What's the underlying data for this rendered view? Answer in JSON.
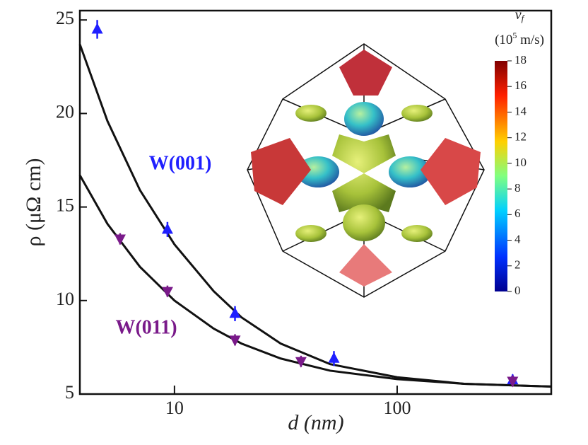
{
  "chart_data": {
    "type": "scatter",
    "xlabel": "d (nm)",
    "ylabel": "ρ (μΩ cm)",
    "xscale": "log",
    "xlim": [
      3.76,
      492
    ],
    "xticks": [
      10,
      100
    ],
    "ylim": [
      5,
      25.5
    ],
    "yticks": [
      5,
      10,
      15,
      20,
      25
    ],
    "series": [
      {
        "name": "W(001)",
        "color": "#1f1fff",
        "marker": "up",
        "x": [
          4.5,
          9.3,
          18.7,
          52,
          330
        ],
        "values": [
          24.5,
          13.8,
          9.3,
          6.9,
          5.75
        ],
        "errors": [
          0.5,
          0.4,
          0.4,
          0.4,
          0.3
        ]
      },
      {
        "name": "W(011)",
        "color": "#7a1a8a",
        "marker": "down",
        "x": [
          5.7,
          9.3,
          18.7,
          37,
          330
        ],
        "values": [
          13.3,
          10.5,
          7.9,
          6.75,
          5.7
        ],
        "errors": [
          0.3,
          0.3,
          0.3,
          0.3,
          0.3
        ]
      }
    ],
    "fits": [
      {
        "x": [
          3.76,
          5,
          7,
          10,
          15,
          20,
          30,
          50,
          100,
          200,
          492
        ],
        "values": [
          23.7,
          19.6,
          15.9,
          13.0,
          10.5,
          9.1,
          7.7,
          6.6,
          5.9,
          5.55,
          5.4
        ]
      },
      {
        "x": [
          3.76,
          5,
          7,
          10,
          15,
          20,
          30,
          50,
          100,
          200,
          492
        ],
        "values": [
          16.7,
          14.1,
          11.8,
          10.0,
          8.5,
          7.7,
          6.9,
          6.25,
          5.8,
          5.55,
          5.4
        ]
      }
    ],
    "colorbar": {
      "label": "v",
      "label_sub": "f",
      "unit_open": "(10",
      "unit_sup": "5",
      "unit_rest": " m/s)",
      "clim": [
        0,
        18
      ],
      "ticks": [
        0,
        2,
        4,
        6,
        8,
        10,
        12,
        14,
        16,
        18
      ]
    }
  }
}
